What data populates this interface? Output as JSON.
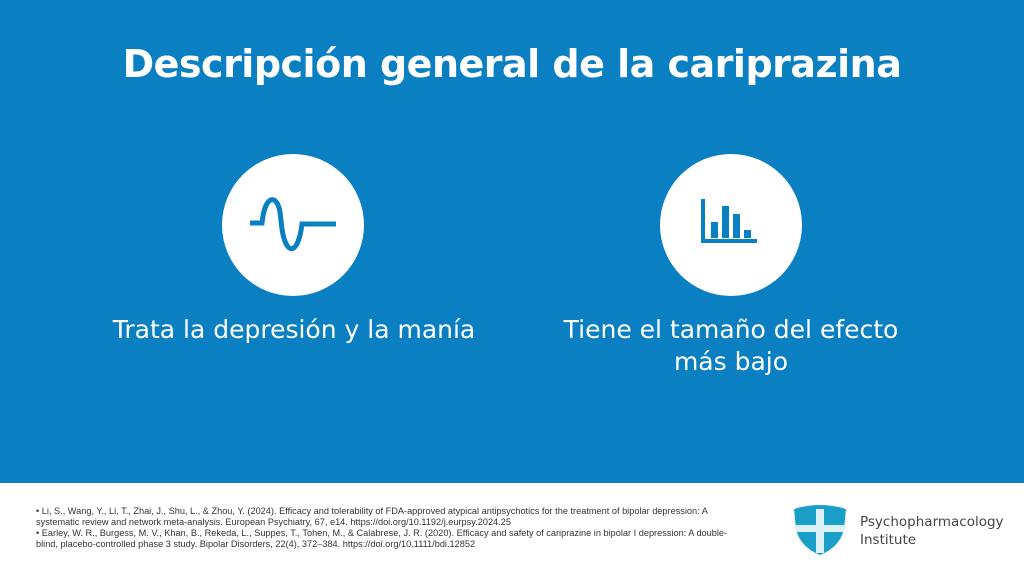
{
  "header": {
    "title": "Descripción general de la cariprazina"
  },
  "items": [
    {
      "label": "Trata la depresión y la manía"
    },
    {
      "label": "Tiene el tamaño del efecto más bajo"
    }
  ],
  "references": [
    "• Li, S., Wang, Y., Li, T., Zhai, J., Shu, L., & Zhou, Y. (2024). Efficacy and tolerability of FDA-approved atypical antipsychotics for the treatment of bipolar depression: A systematic review and network meta-analysis. European Psychiatry, 67, e14. https://doi.org/10.1192/j.eurpsy.2024.25",
    "• Earley, W. R., Burgess, M. V., Khan, B., Rekeda, L., Suppes, T., Tohen, M., & Calabrese, J. R. (2020). Efficacy and safety of cariprazine in bipolar I depression: A double-blind, placebo-controlled phase 3 study. Bipolar Disorders, 22(4), 372–384. https://doi.org/10.1111/bdi.12852"
  ],
  "logo": {
    "line1": "Psychopharmacology",
    "line2": "Institute"
  }
}
